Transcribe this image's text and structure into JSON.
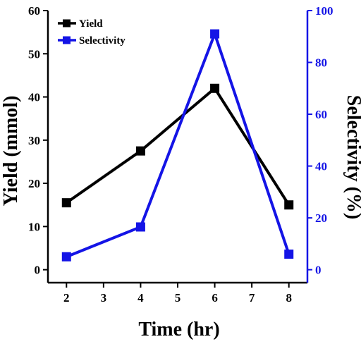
{
  "chart_data": {
    "type": "line",
    "xlabel": "Time (hr)",
    "ylabel": "Yield (mmol)",
    "y2label": "Selectivity (%)",
    "xlim": [
      1.5,
      8.5
    ],
    "ylim": [
      -3,
      60
    ],
    "y2lim": [
      -5,
      100
    ],
    "x_ticks": [
      2,
      3,
      4,
      5,
      6,
      7,
      8
    ],
    "y_ticks": [
      0,
      10,
      20,
      30,
      40,
      50,
      60
    ],
    "y2_ticks": [
      0,
      20,
      40,
      60,
      80,
      100
    ],
    "legend_position": "top-left",
    "grid": false,
    "axis_color": "#000000",
    "y2_axis_color": "#1414e6",
    "series": [
      {
        "name": "Yield",
        "axis": "left",
        "color": "#000000",
        "marker": "square",
        "x": [
          2,
          4,
          6,
          8
        ],
        "values": [
          15.5,
          27.5,
          42,
          15
        ]
      },
      {
        "name": "Selectivity",
        "axis": "right",
        "color": "#1414e6",
        "marker": "square",
        "x": [
          2,
          4,
          6,
          8
        ],
        "values": [
          5,
          16.5,
          91,
          6
        ]
      }
    ]
  }
}
